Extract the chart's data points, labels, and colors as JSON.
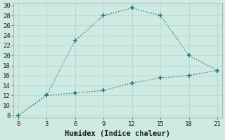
{
  "line1_x": [
    0,
    3,
    6,
    9,
    12,
    15,
    18,
    21
  ],
  "line1_y": [
    8,
    12,
    23,
    28,
    29.5,
    28,
    20,
    17
  ],
  "line2_x": [
    0,
    3,
    6,
    9,
    12,
    15,
    18,
    21
  ],
  "line2_y": [
    8,
    12,
    12.5,
    13,
    14.5,
    15.5,
    16,
    17
  ],
  "line_color": "#2a7d6e",
  "bg_color": "#ceeae3",
  "grid_color": "#b8ddd5",
  "xlabel": "Humidex (Indice chaleur)",
  "xlim": [
    -0.5,
    21.5
  ],
  "ylim": [
    7.5,
    30.5
  ],
  "xticks": [
    0,
    3,
    6,
    9,
    12,
    15,
    18,
    21
  ],
  "yticks": [
    8,
    10,
    12,
    14,
    16,
    18,
    20,
    22,
    24,
    26,
    28,
    30
  ],
  "xlabel_fontsize": 7.5,
  "tick_fontsize": 6.5
}
